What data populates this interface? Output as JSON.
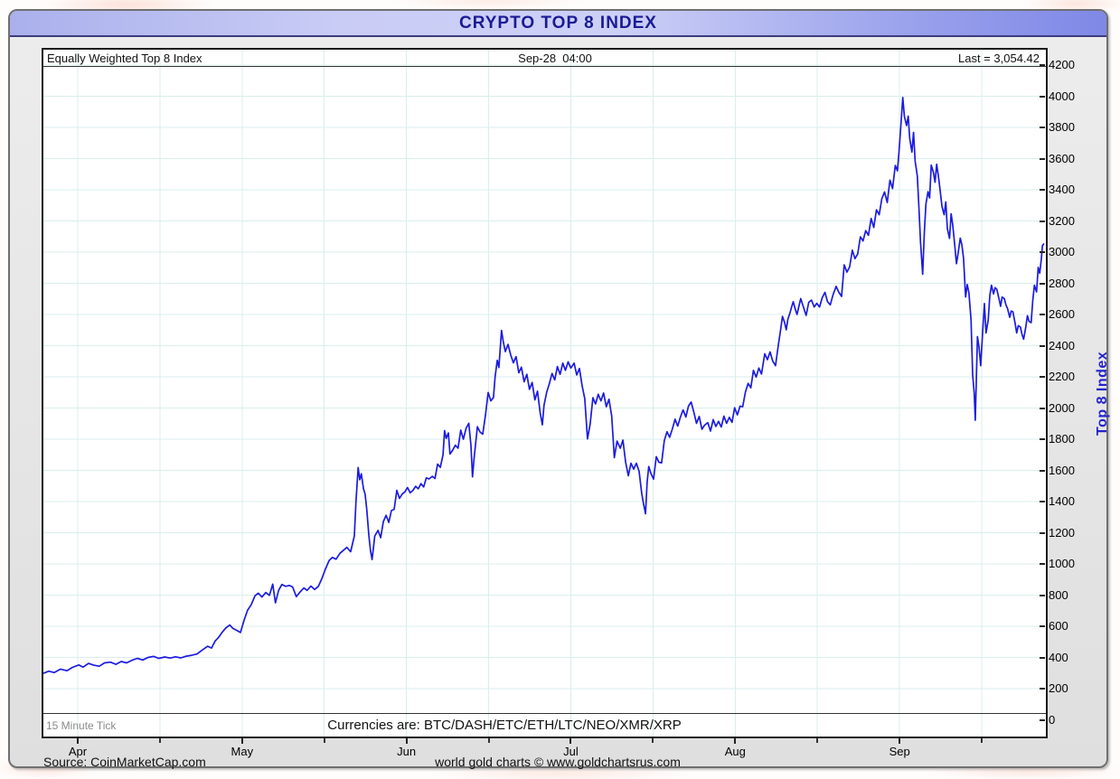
{
  "title": "CRYPTO TOP 8 INDEX",
  "header": {
    "left": "Equally Weighted Top 8 Index",
    "center": "Sep-28  04:00",
    "right": "Last = 3,054.42"
  },
  "footer": {
    "tick_note": "15 Minute Tick",
    "currencies": "Currencies are: BTC/DASH/ETC/ETH/LTC/NEO/XMR/XRP"
  },
  "bottom": {
    "source": "Source: CoinMarketCap.com",
    "copyright": "world gold charts © www.goldchartsrus.com"
  },
  "y_axis": {
    "label": "Top 8 Index",
    "min": 0,
    "max": 4200,
    "step": 200
  },
  "x_axis": {
    "months": [
      "Apr",
      "May",
      "Jun",
      "Jul",
      "Aug",
      "Sep"
    ]
  },
  "colors": {
    "line": "#1b1be0",
    "grid": "#d9efec",
    "title_text": "#1b1b94",
    "y_axis_title": "#2222cc",
    "strip_border": "#333333",
    "frame_bg": "#e6e6e6",
    "titlebar_left": "#aab0ec",
    "titlebar_center": "#cdd0f6",
    "titlebar_right": "#7f88e6"
  },
  "chart_data": {
    "type": "line",
    "series_name": "Equally Weighted Top 8 Index",
    "title": "CRYPTO TOP 8 INDEX",
    "x_unit": "days_since_apr1",
    "x_range_days": [
      -6.4,
      180
    ],
    "as_of": "Sep-28 04:00",
    "last": 3054.42,
    "ylim": [
      0,
      4200
    ],
    "grid": true,
    "points": [
      [
        -6.4,
        298
      ],
      [
        -5.4,
        312
      ],
      [
        -4.4,
        303
      ],
      [
        -3.2,
        325
      ],
      [
        -2,
        315
      ],
      [
        -1,
        336
      ],
      [
        0.2,
        352
      ],
      [
        1,
        338
      ],
      [
        2,
        362
      ],
      [
        3,
        350
      ],
      [
        4,
        344
      ],
      [
        5,
        365
      ],
      [
        6.1,
        370
      ],
      [
        7.1,
        356
      ],
      [
        8.1,
        374
      ],
      [
        9.1,
        365
      ],
      [
        10.1,
        382
      ],
      [
        11.1,
        394
      ],
      [
        12.1,
        384
      ],
      [
        13.1,
        400
      ],
      [
        14.1,
        407
      ],
      [
        15.1,
        394
      ],
      [
        16.2,
        403
      ],
      [
        17.2,
        396
      ],
      [
        18.2,
        404
      ],
      [
        19.2,
        397
      ],
      [
        20.2,
        408
      ],
      [
        21.2,
        414
      ],
      [
        22.2,
        422
      ],
      [
        23.2,
        448
      ],
      [
        24.2,
        472
      ],
      [
        24.9,
        460
      ],
      [
        25.6,
        506
      ],
      [
        26.2,
        528
      ],
      [
        26.9,
        562
      ],
      [
        27.6,
        590
      ],
      [
        28.3,
        608
      ],
      [
        28.9,
        586
      ],
      [
        29.6,
        574
      ],
      [
        30.3,
        560
      ],
      [
        31,
        642
      ],
      [
        31.6,
        702
      ],
      [
        32.3,
        738
      ],
      [
        33,
        796
      ],
      [
        33.6,
        812
      ],
      [
        34.3,
        788
      ],
      [
        35,
        816
      ],
      [
        35.7,
        798
      ],
      [
        36.3,
        870
      ],
      [
        36.8,
        750
      ],
      [
        37.4,
        830
      ],
      [
        38,
        868
      ],
      [
        38.7,
        856
      ],
      [
        39.4,
        862
      ],
      [
        40,
        852
      ],
      [
        40.7,
        790
      ],
      [
        41.4,
        820
      ],
      [
        42.1,
        846
      ],
      [
        42.7,
        830
      ],
      [
        43.4,
        858
      ],
      [
        44.1,
        836
      ],
      [
        44.8,
        856
      ],
      [
        45.4,
        902
      ],
      [
        46.1,
        966
      ],
      [
        46.8,
        1022
      ],
      [
        47.4,
        1042
      ],
      [
        48.1,
        1030
      ],
      [
        48.8,
        1068
      ],
      [
        49.5,
        1088
      ],
      [
        50.1,
        1106
      ],
      [
        50.8,
        1078
      ],
      [
        51.5,
        1180
      ],
      [
        51.8,
        1400
      ],
      [
        52.2,
        1618
      ],
      [
        52.5,
        1540
      ],
      [
        52.8,
        1578
      ],
      [
        53.2,
        1482
      ],
      [
        53.5,
        1448
      ],
      [
        53.8,
        1352
      ],
      [
        54.2,
        1180
      ],
      [
        54.5,
        1088
      ],
      [
        54.8,
        1028
      ],
      [
        55.3,
        1180
      ],
      [
        55.9,
        1215
      ],
      [
        56.4,
        1168
      ],
      [
        56.9,
        1272
      ],
      [
        57.4,
        1312
      ],
      [
        57.9,
        1266
      ],
      [
        58.4,
        1342
      ],
      [
        58.9,
        1350
      ],
      [
        59.4,
        1472
      ],
      [
        59.9,
        1420
      ],
      [
        60.4,
        1448
      ],
      [
        60.9,
        1462
      ],
      [
        61.4,
        1490
      ],
      [
        61.9,
        1456
      ],
      [
        62.4,
        1472
      ],
      [
        62.9,
        1498
      ],
      [
        63.4,
        1482
      ],
      [
        63.9,
        1515
      ],
      [
        64.4,
        1494
      ],
      [
        64.9,
        1552
      ],
      [
        65.4,
        1545
      ],
      [
        66,
        1562
      ],
      [
        66.5,
        1548
      ],
      [
        67,
        1640
      ],
      [
        67.5,
        1620
      ],
      [
        68,
        1700
      ],
      [
        68.3,
        1855
      ],
      [
        68.6,
        1805
      ],
      [
        69,
        1840
      ],
      [
        69.3,
        1705
      ],
      [
        69.8,
        1730
      ],
      [
        70.3,
        1762
      ],
      [
        70.8,
        1742
      ],
      [
        71.3,
        1858
      ],
      [
        71.8,
        1800
      ],
      [
        72.3,
        1870
      ],
      [
        72.8,
        1902
      ],
      [
        73.2,
        1760
      ],
      [
        73.5,
        1558
      ],
      [
        73.8,
        1680
      ],
      [
        74.4,
        1880
      ],
      [
        74.9,
        1846
      ],
      [
        75.4,
        1832
      ],
      [
        75.9,
        1952
      ],
      [
        76.4,
        2100
      ],
      [
        76.9,
        2046
      ],
      [
        77.4,
        2068
      ],
      [
        77.7,
        2200
      ],
      [
        78.1,
        2306
      ],
      [
        78.4,
        2260
      ],
      [
        78.9,
        2498
      ],
      [
        79.2,
        2430
      ],
      [
        79.6,
        2362
      ],
      [
        80.1,
        2408
      ],
      [
        80.6,
        2342
      ],
      [
        81.1,
        2290
      ],
      [
        81.6,
        2330
      ],
      [
        82.1,
        2226
      ],
      [
        82.6,
        2262
      ],
      [
        83.1,
        2168
      ],
      [
        83.6,
        2216
      ],
      [
        84.1,
        2120
      ],
      [
        84.6,
        2164
      ],
      [
        85.1,
        2052
      ],
      [
        85.6,
        2108
      ],
      [
        86.1,
        1968
      ],
      [
        86.5,
        1892
      ],
      [
        86.8,
        2018
      ],
      [
        87.3,
        2102
      ],
      [
        87.8,
        2156
      ],
      [
        88.3,
        2222
      ],
      [
        88.8,
        2180
      ],
      [
        89.3,
        2266
      ],
      [
        89.8,
        2216
      ],
      [
        90.3,
        2288
      ],
      [
        90.8,
        2242
      ],
      [
        91.3,
        2296
      ],
      [
        91.8,
        2256
      ],
      [
        92.4,
        2288
      ],
      [
        92.9,
        2212
      ],
      [
        93.4,
        2254
      ],
      [
        93.9,
        2142
      ],
      [
        94.4,
        2060
      ],
      [
        94.9,
        1802
      ],
      [
        95.4,
        1900
      ],
      [
        95.9,
        2066
      ],
      [
        96.4,
        2026
      ],
      [
        96.9,
        2088
      ],
      [
        97.4,
        2046
      ],
      [
        97.9,
        2096
      ],
      [
        98.4,
        2008
      ],
      [
        98.9,
        2056
      ],
      [
        99.4,
        1948
      ],
      [
        99.9,
        1682
      ],
      [
        100.4,
        1788
      ],
      [
        101,
        1742
      ],
      [
        101.5,
        1794
      ],
      [
        102,
        1652
      ],
      [
        102.5,
        1566
      ],
      [
        103,
        1646
      ],
      [
        103.5,
        1608
      ],
      [
        104,
        1646
      ],
      [
        104.5,
        1594
      ],
      [
        105,
        1452
      ],
      [
        105.3,
        1392
      ],
      [
        105.7,
        1322
      ],
      [
        106,
        1525
      ],
      [
        106.3,
        1625
      ],
      [
        106.7,
        1582
      ],
      [
        107.2,
        1544
      ],
      [
        107.7,
        1688
      ],
      [
        108.2,
        1652
      ],
      [
        108.7,
        1648
      ],
      [
        109.2,
        1792
      ],
      [
        109.7,
        1848
      ],
      [
        110.2,
        1812
      ],
      [
        110.7,
        1866
      ],
      [
        111.2,
        1928
      ],
      [
        111.7,
        1884
      ],
      [
        112.2,
        1942
      ],
      [
        112.7,
        1988
      ],
      [
        113.2,
        1942
      ],
      [
        113.7,
        2012
      ],
      [
        114.2,
        2038
      ],
      [
        114.7,
        1972
      ],
      [
        115.2,
        1902
      ],
      [
        115.7,
        1946
      ],
      [
        116.2,
        1864
      ],
      [
        116.7,
        1890
      ],
      [
        117.3,
        1906
      ],
      [
        117.8,
        1852
      ],
      [
        118.3,
        1926
      ],
      [
        118.8,
        1882
      ],
      [
        119.3,
        1914
      ],
      [
        119.8,
        1878
      ],
      [
        120.3,
        1948
      ],
      [
        120.8,
        1902
      ],
      [
        121.3,
        1940
      ],
      [
        121.8,
        1908
      ],
      [
        122.3,
        2002
      ],
      [
        122.8,
        1956
      ],
      [
        123.3,
        2012
      ],
      [
        123.8,
        2008
      ],
      [
        124.3,
        2102
      ],
      [
        124.8,
        2158
      ],
      [
        125.3,
        2130
      ],
      [
        125.8,
        2242
      ],
      [
        126.3,
        2198
      ],
      [
        126.8,
        2256
      ],
      [
        127.3,
        2218
      ],
      [
        127.9,
        2348
      ],
      [
        128.4,
        2310
      ],
      [
        128.9,
        2360
      ],
      [
        129.4,
        2300
      ],
      [
        129.9,
        2272
      ],
      [
        130.4,
        2398
      ],
      [
        130.9,
        2512
      ],
      [
        131.2,
        2588
      ],
      [
        131.6,
        2548
      ],
      [
        131.9,
        2502
      ],
      [
        132.2,
        2570
      ],
      [
        132.6,
        2610
      ],
      [
        132.9,
        2648
      ],
      [
        133.2,
        2682
      ],
      [
        133.6,
        2632
      ],
      [
        133.9,
        2600
      ],
      [
        134.3,
        2658
      ],
      [
        134.6,
        2702
      ],
      [
        135.1,
        2648
      ],
      [
        135.6,
        2594
      ],
      [
        136.1,
        2678
      ],
      [
        136.6,
        2692
      ],
      [
        137.1,
        2648
      ],
      [
        137.6,
        2672
      ],
      [
        138.1,
        2648
      ],
      [
        138.6,
        2708
      ],
      [
        139.1,
        2742
      ],
      [
        139.6,
        2682
      ],
      [
        140.1,
        2662
      ],
      [
        140.6,
        2726
      ],
      [
        141.2,
        2780
      ],
      [
        141.7,
        2742
      ],
      [
        142.2,
        2716
      ],
      [
        142.7,
        2918
      ],
      [
        143.2,
        2872
      ],
      [
        143.7,
        2905
      ],
      [
        144.2,
        3012
      ],
      [
        144.7,
        2958
      ],
      [
        145.2,
        2988
      ],
      [
        145.7,
        3098
      ],
      [
        146.2,
        3072
      ],
      [
        146.7,
        3138
      ],
      [
        147.2,
        3108
      ],
      [
        147.7,
        3216
      ],
      [
        148.2,
        3158
      ],
      [
        148.7,
        3272
      ],
      [
        149.2,
        3240
      ],
      [
        149.7,
        3342
      ],
      [
        150.2,
        3386
      ],
      [
        150.7,
        3318
      ],
      [
        151.2,
        3462
      ],
      [
        151.7,
        3408
      ],
      [
        152.2,
        3556
      ],
      [
        152.6,
        3522
      ],
      [
        152.9,
        3650
      ],
      [
        153.3,
        3838
      ],
      [
        153.6,
        3992
      ],
      [
        153.9,
        3870
      ],
      [
        154.3,
        3812
      ],
      [
        154.6,
        3872
      ],
      [
        154.9,
        3728
      ],
      [
        155.3,
        3642
      ],
      [
        155.6,
        3768
      ],
      [
        155.9,
        3582
      ],
      [
        156.3,
        3488
      ],
      [
        156.6,
        3292
      ],
      [
        156.9,
        3068
      ],
      [
        157.3,
        2858
      ],
      [
        157.6,
        3122
      ],
      [
        157.9,
        3308
      ],
      [
        158.3,
        3388
      ],
      [
        158.6,
        3348
      ],
      [
        158.9,
        3558
      ],
      [
        159.3,
        3512
      ],
      [
        159.6,
        3448
      ],
      [
        159.9,
        3564
      ],
      [
        160.3,
        3470
      ],
      [
        160.6,
        3382
      ],
      [
        160.9,
        3292
      ],
      [
        161.3,
        3240
      ],
      [
        161.6,
        3322
      ],
      [
        161.9,
        3152
      ],
      [
        162.3,
        3088
      ],
      [
        162.6,
        3246
      ],
      [
        162.9,
        3172
      ],
      [
        163.3,
        3032
      ],
      [
        163.6,
        2926
      ],
      [
        163.9,
        2992
      ],
      [
        164.3,
        3090
      ],
      [
        164.6,
        3046
      ],
      [
        164.9,
        2962
      ],
      [
        165.3,
        2712
      ],
      [
        165.6,
        2792
      ],
      [
        165.9,
        2742
      ],
      [
        166.3,
        2568
      ],
      [
        166.6,
        2212
      ],
      [
        166.9,
        2098
      ],
      [
        167.1,
        1922
      ],
      [
        167.5,
        2458
      ],
      [
        167.8,
        2388
      ],
      [
        168.1,
        2272
      ],
      [
        168.5,
        2512
      ],
      [
        168.8,
        2670
      ],
      [
        169.1,
        2482
      ],
      [
        169.5,
        2564
      ],
      [
        169.8,
        2722
      ],
      [
        170.1,
        2788
      ],
      [
        170.5,
        2732
      ],
      [
        170.8,
        2772
      ],
      [
        171.1,
        2762
      ],
      [
        171.5,
        2702
      ],
      [
        171.8,
        2652
      ],
      [
        172.1,
        2712
      ],
      [
        172.5,
        2702
      ],
      [
        172.8,
        2662
      ],
      [
        173.1,
        2638
      ],
      [
        173.5,
        2582
      ],
      [
        173.8,
        2622
      ],
      [
        174.1,
        2618
      ],
      [
        174.5,
        2546
      ],
      [
        174.8,
        2482
      ],
      [
        175.1,
        2528
      ],
      [
        175.5,
        2520
      ],
      [
        175.8,
        2472
      ],
      [
        176.1,
        2442
      ],
      [
        176.5,
        2520
      ],
      [
        176.8,
        2592
      ],
      [
        177.1,
        2556
      ],
      [
        177.5,
        2548
      ],
      [
        177.8,
        2690
      ],
      [
        178.1,
        2788
      ],
      [
        178.5,
        2745
      ],
      [
        178.8,
        2902
      ],
      [
        179.1,
        2865
      ],
      [
        179.4,
        2958
      ],
      [
        179.6,
        3042
      ],
      [
        179.9,
        3055
      ]
    ]
  }
}
